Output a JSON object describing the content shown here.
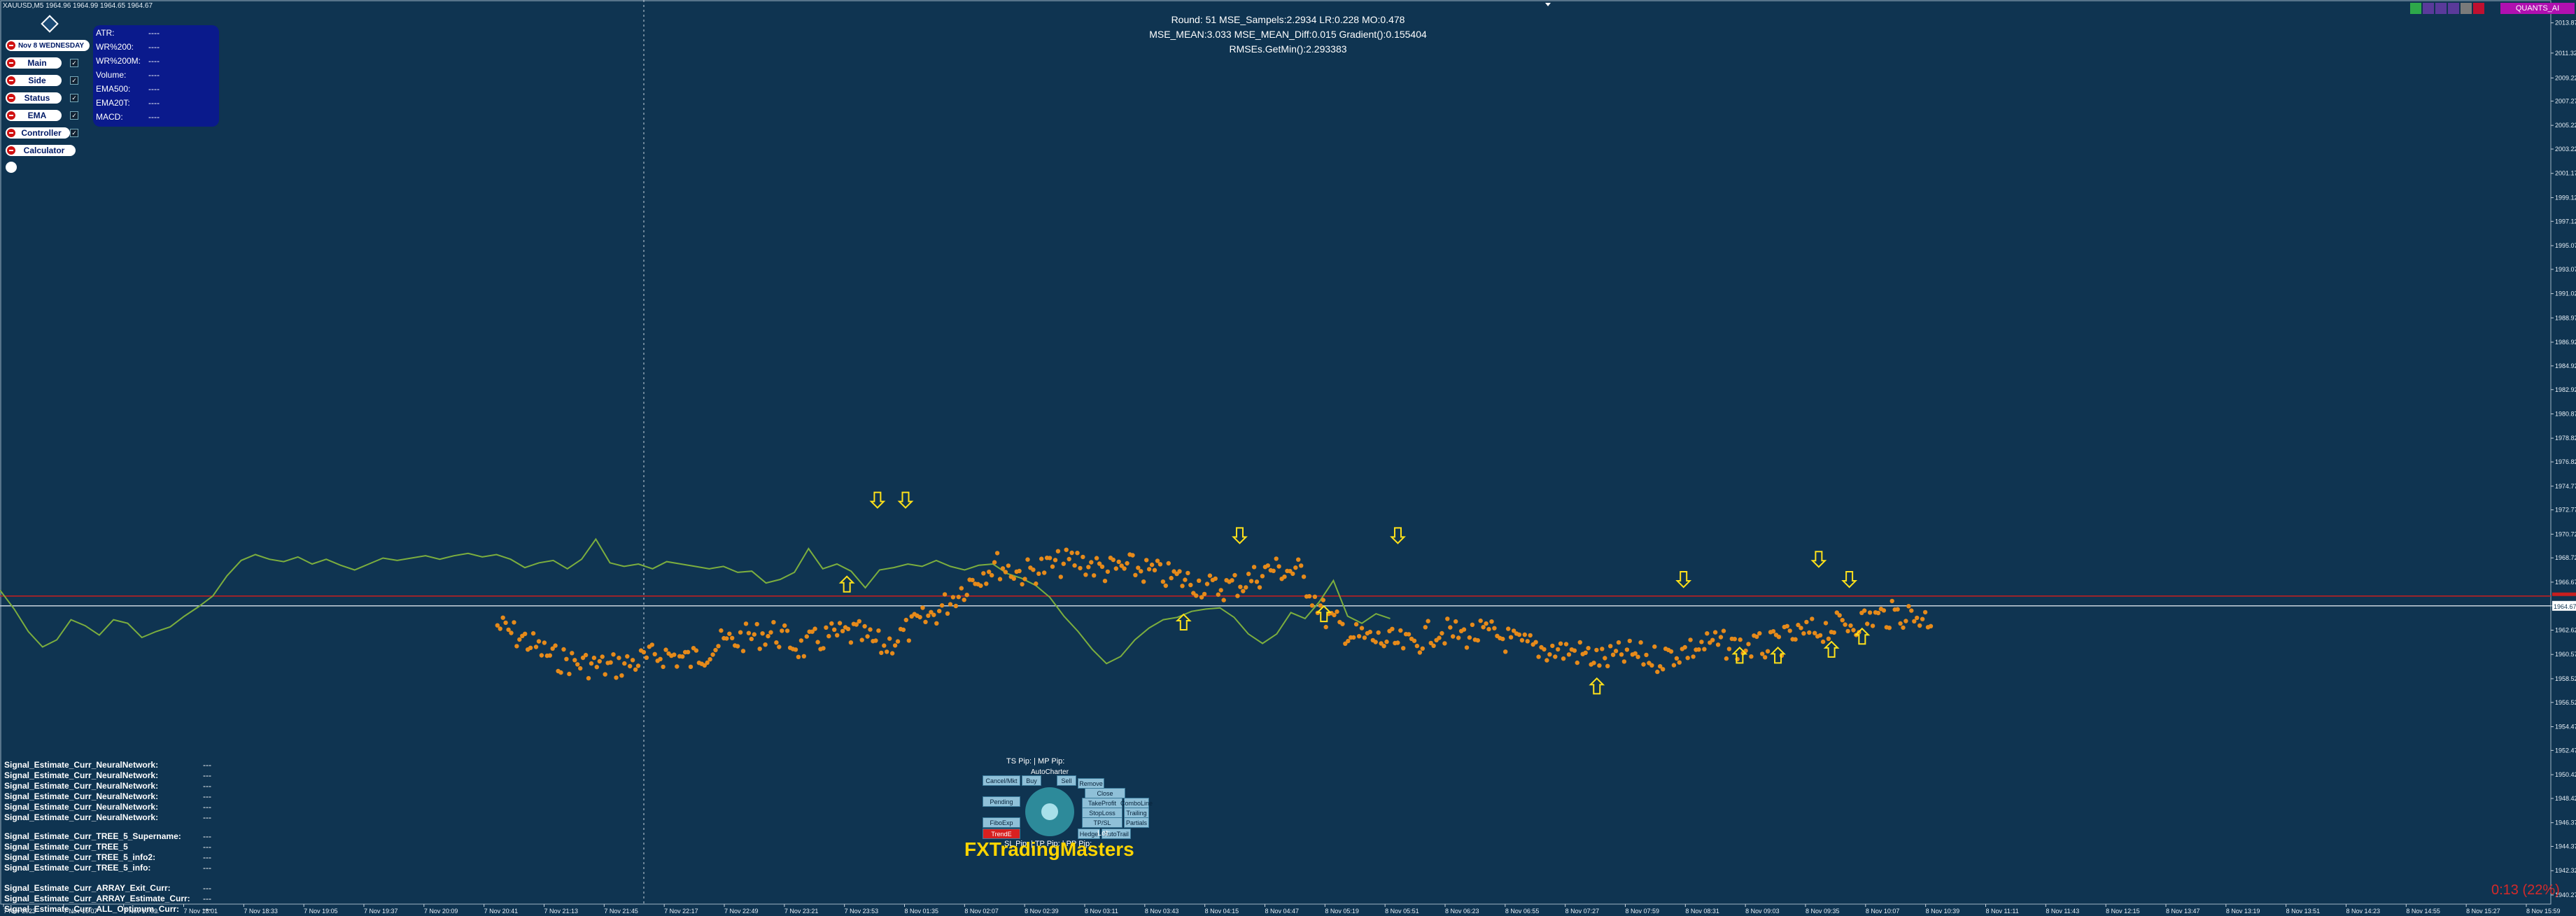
{
  "header": {
    "symbol_line": "XAUUSD,M5  1964.96 1964.99 1964.65 1964.67"
  },
  "left_menu": {
    "date_button": "Nov 8 WEDNESDAY",
    "main": "Main",
    "side": "Side",
    "status": "Status",
    "ema": "EMA",
    "controller": "Controller",
    "calculator": "Calculator"
  },
  "indicator_panel": {
    "rows": [
      {
        "label": "ATR:",
        "value": "----"
      },
      {
        "label": "WR%200:",
        "value": "----"
      },
      {
        "label": "WR%200M:",
        "value": "----"
      },
      {
        "label": "Volume:",
        "value": "----"
      },
      {
        "label": "EMA500:",
        "value": "----"
      },
      {
        "label": "EMA20T:",
        "value": "----"
      },
      {
        "label": "MACD:",
        "value": "----"
      }
    ]
  },
  "training_status": {
    "line1": "Round: 51     MSE_Sampels:2.2934   LR:0.228   MO:0.478",
    "line2": "MSE_MEAN:3.033   MSE_MEAN_Diff:0.015   Gradient():0.155404",
    "line3": "RMSEs.GetMin():2.293383"
  },
  "top_right": {
    "badge": "QUANTS_AI",
    "colors": [
      "#2ea84a",
      "#5a3a9a",
      "#5a3a9a",
      "#5a3a9a",
      "#7a7a7a",
      "#c01030"
    ]
  },
  "signals": {
    "group1": [
      {
        "label": "Signal_Estimate_Curr_NeuralNetwork:",
        "value": "---"
      },
      {
        "label": "Signal_Estimate_Curr_NeuralNetwork:",
        "value": "---"
      },
      {
        "label": "Signal_Estimate_Curr_NeuralNetwork:",
        "value": "---"
      },
      {
        "label": "Signal_Estimate_Curr_NeuralNetwork:",
        "value": "---"
      },
      {
        "label": "Signal_Estimate_Curr_NeuralNetwork:",
        "value": "---"
      },
      {
        "label": "Signal_Estimate_Curr_NeuralNetwork:",
        "value": "---"
      }
    ],
    "group2": [
      {
        "label": "Signal_Estimate_Curr_TREE_5_Supername:",
        "value": "---"
      },
      {
        "label": "Signal_Estimate_Curr_TREE_5",
        "value": "---"
      },
      {
        "label": "Signal_Estimate_Curr_TREE_5_info2:",
        "value": "---"
      },
      {
        "label": "Signal_Estimate_Curr_TREE_5_info:",
        "value": "---"
      }
    ],
    "group3": [
      {
        "label": "Signal_Estimate_Curr_ARRAY_Exit_Curr:",
        "value": "---"
      },
      {
        "label": "Signal_Estimate_Curr_ARRAY_Estimate_Curr:",
        "value": "---"
      },
      {
        "label": "Signal_Estimate_Curr_ALL_Optimum_Curr:",
        "value": "---"
      }
    ]
  },
  "trade_panel": {
    "ts_mp": "TS Pip:  |  MP Pip:",
    "autocharter": "AutoCharter",
    "lot": "Lot:",
    "sl_tp_pp": "SL Pip:  | TP Pip:  | PP Pip:",
    "brand": "FXTradingMasters",
    "buttons": [
      "Cancel/Mkt",
      "Buy",
      "Sell",
      "Pending",
      "FiboExp",
      "TrendE",
      "Remove",
      "Close",
      "TakeProfit",
      "ComboLine",
      "StopLoss",
      "Trailing",
      "TP/SL",
      "Partials",
      "Hedge",
      "AutoTrail"
    ]
  },
  "timer": "0:13 (22%)",
  "price_label_current": "1964.67",
  "chart_data": {
    "type": "line",
    "price_scale": [
      "2013.87",
      "2011.32",
      "2009.22",
      "2007.27",
      "2005.22",
      "2003.22",
      "2001.17",
      "1999.12",
      "1997.12",
      "1995.07",
      "1993.07",
      "1991.02",
      "1988.97",
      "1986.92",
      "1984.92",
      "1982.92",
      "1980.87",
      "1978.82",
      "1976.82",
      "1974.77",
      "1972.77",
      "1970.72",
      "1968.72",
      "1966.67",
      "1964.67",
      "1962.62",
      "1960.57",
      "1958.52",
      "1956.52",
      "1954.47",
      "1952.47",
      "1950.42",
      "1948.42",
      "1946.37",
      "1944.37",
      "1942.32",
      "1940.27"
    ],
    "ylim": [
      1939.5,
      2014.5
    ],
    "time_labels": [
      "7 Nov 2023",
      "7 Nov 16:07",
      "7 Nov 17:09",
      "7 Nov 18:01",
      "7 Nov 18:33",
      "7 Nov 19:05",
      "7 Nov 19:37",
      "7 Nov 20:09",
      "7 Nov 20:41",
      "7 Nov 21:13",
      "7 Nov 21:45",
      "7 Nov 22:17",
      "7 Nov 22:49",
      "7 Nov 23:21",
      "7 Nov 23:53",
      "8 Nov 01:35",
      "8 Nov 02:07",
      "8 Nov 02:39",
      "8 Nov 03:11",
      "8 Nov 03:43",
      "8 Nov 04:15",
      "8 Nov 04:47",
      "8 Nov 05:19",
      "8 Nov 05:51",
      "8 Nov 06:23",
      "8 Nov 06:55",
      "8 Nov 07:27",
      "8 Nov 07:59",
      "8 Nov 08:31",
      "8 Nov 09:03",
      "8 Nov 09:35",
      "8 Nov 10:07",
      "8 Nov 10:39",
      "8 Nov 11:11",
      "8 Nov 11:43",
      "8 Nov 12:15",
      "8 Nov 13:47",
      "8 Nov 13:19",
      "8 Nov 13:51",
      "8 Nov 14:23",
      "8 Nov 14:55",
      "8 Nov 15:27",
      "8 Nov 15:59"
    ],
    "series": [
      {
        "color": "#7cae3e",
        "values": [
          1966.0,
          1964.4,
          1962.5,
          1961.2,
          1961.8,
          1963.5,
          1963.0,
          1962.2,
          1963.5,
          1963.2,
          1962.0,
          1962.5,
          1962.9,
          1963.8,
          1964.6,
          1965.5,
          1967.2,
          1968.5,
          1969.0,
          1968.6,
          1968.4,
          1968.8,
          1968.2,
          1968.6,
          1968.1,
          1967.7,
          1968.2,
          1968.7,
          1968.5,
          1968.7,
          1968.9,
          1968.6,
          1968.9,
          1969.1,
          1968.8,
          1969.0,
          1968.6,
          1967.9,
          1968.3,
          1968.5,
          1967.8,
          1968.6,
          1970.3,
          1968.3,
          1968.0,
          1968.2,
          1967.8,
          1968.4,
          1968.2,
          1968.0,
          1967.8,
          1968.0,
          1967.5,
          1967.6,
          1966.6,
          1966.9,
          1967.5,
          1969.5,
          1967.8,
          1968.2,
          1967.6,
          1966.2,
          1967.7,
          1967.9,
          1968.2,
          1968.0,
          1968.5,
          1968.0,
          1967.7,
          1968.1,
          1968.2,
          1967.4,
          1967.0,
          1966.4,
          1965.4,
          1963.8,
          1962.5,
          1961.0,
          1959.8,
          1960.4,
          1961.8,
          1962.8,
          1963.5,
          1963.7,
          1964.2,
          1964.4,
          1964.5,
          1963.7,
          1962.3,
          1961.5,
          1962.3,
          1964.1,
          1963.6,
          1965.0,
          1966.8,
          1963.8,
          1963.2,
          1964.0,
          1963.6
        ]
      },
      {
        "color": "#e68a1a",
        "values": [
          1963.0,
          1961.8,
          1960.3,
          1959.8,
          1959.5,
          1959.9,
          1960.6,
          1960.1,
          1961.4,
          1962.0,
          1962.4,
          1961.1,
          1962.1,
          1962.3,
          1961.2,
          1962.8,
          1964.3,
          1966.5,
          1968.2,
          1967.4,
          1968.0,
          1968.5,
          1967.7,
          1967.9,
          1967.3,
          1966.8,
          1966.1,
          1966.6,
          1967.8,
          1967.6,
          1963.8,
          1962.1,
          1961.7,
          1961.3,
          1962.6,
          1962.2,
          1962.3,
          1961.4,
          1961.0,
          1960.8,
          1960.1,
          1960.6,
          1960.2,
          1960.9,
          1961.5,
          1961.2,
          1961.2,
          1962.1,
          1962.7,
          1963.2,
          1963.8,
          1964.0,
          1963.5
        ]
      }
    ],
    "arrows_down": [
      [
        0.344,
        1973.6
      ],
      [
        0.355,
        1973.6
      ],
      [
        0.486,
        1970.6
      ],
      [
        0.548,
        1970.6
      ],
      [
        0.66,
        1966.9
      ],
      [
        0.713,
        1968.6
      ],
      [
        0.725,
        1966.9
      ]
    ],
    "arrows_up": [
      [
        0.332,
        1966.5
      ],
      [
        0.464,
        1963.3
      ],
      [
        0.519,
        1964.0
      ],
      [
        0.626,
        1957.9
      ],
      [
        0.682,
        1960.5
      ],
      [
        0.697,
        1960.5
      ],
      [
        0.718,
        1961.0
      ],
      [
        0.73,
        1962.1
      ]
    ],
    "horizontal_lines": [
      {
        "price": 1965.5,
        "color": "#c81e1e"
      },
      {
        "price": 1964.67,
        "color": "#c8d3dd"
      }
    ]
  }
}
